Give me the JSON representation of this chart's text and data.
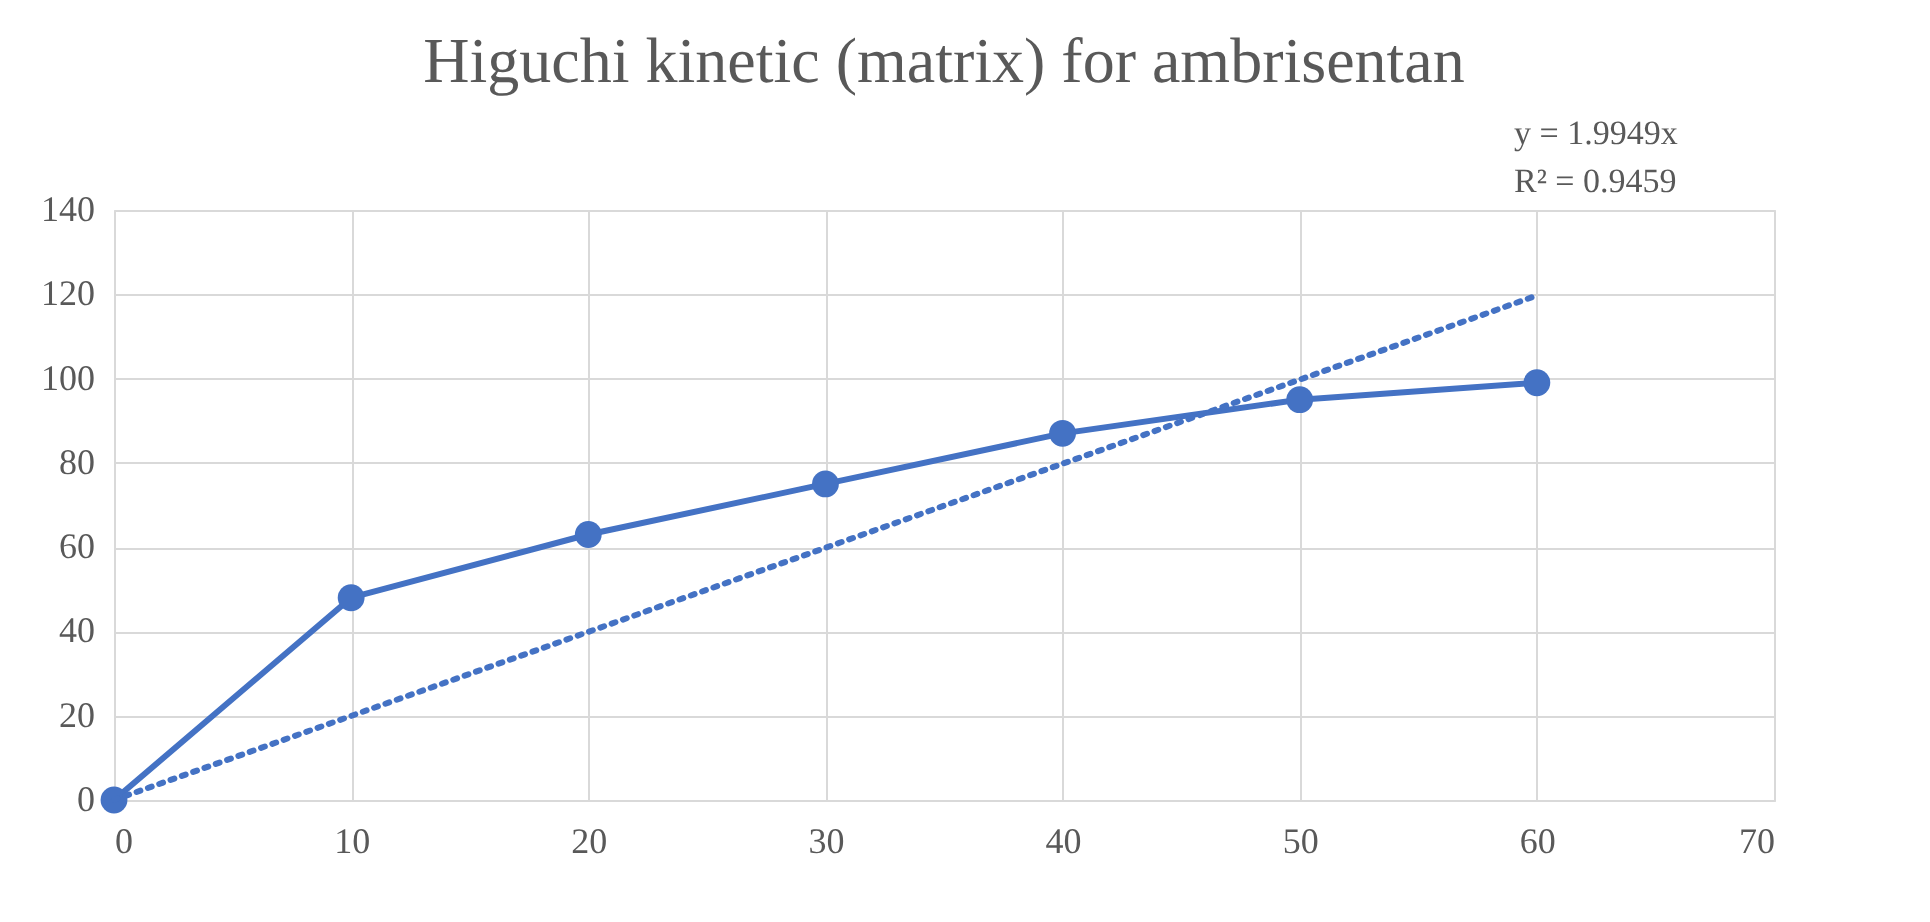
{
  "chart_data": {
    "type": "line",
    "title": "Higuchi  kinetic  (matrix)  for ambrisentan",
    "x": [
      0,
      10,
      20,
      30,
      40,
      50,
      60
    ],
    "series": [
      {
        "color": "#4472c4",
        "values": [
          0,
          48,
          63,
          75,
          87,
          95,
          99
        ],
        "marker": "circle",
        "line_style": "solid"
      },
      {
        "type": "line",
        "x": [
          0,
          60
        ],
        "color": "#4472c4",
        "values": [
          0,
          119.7
        ],
        "marker": "none",
        "line_style": "dotted"
      }
    ],
    "annotations": [
      "y = 1.9949x",
      "R² = 0.9459"
    ],
    "xlim": [
      0,
      70
    ],
    "xticks": [
      0,
      10,
      20,
      30,
      40,
      50,
      60,
      70
    ],
    "ylim": [
      0,
      140
    ],
    "yticks": [
      0,
      20,
      40,
      60,
      80,
      100,
      120,
      140
    ],
    "grid": true
  }
}
